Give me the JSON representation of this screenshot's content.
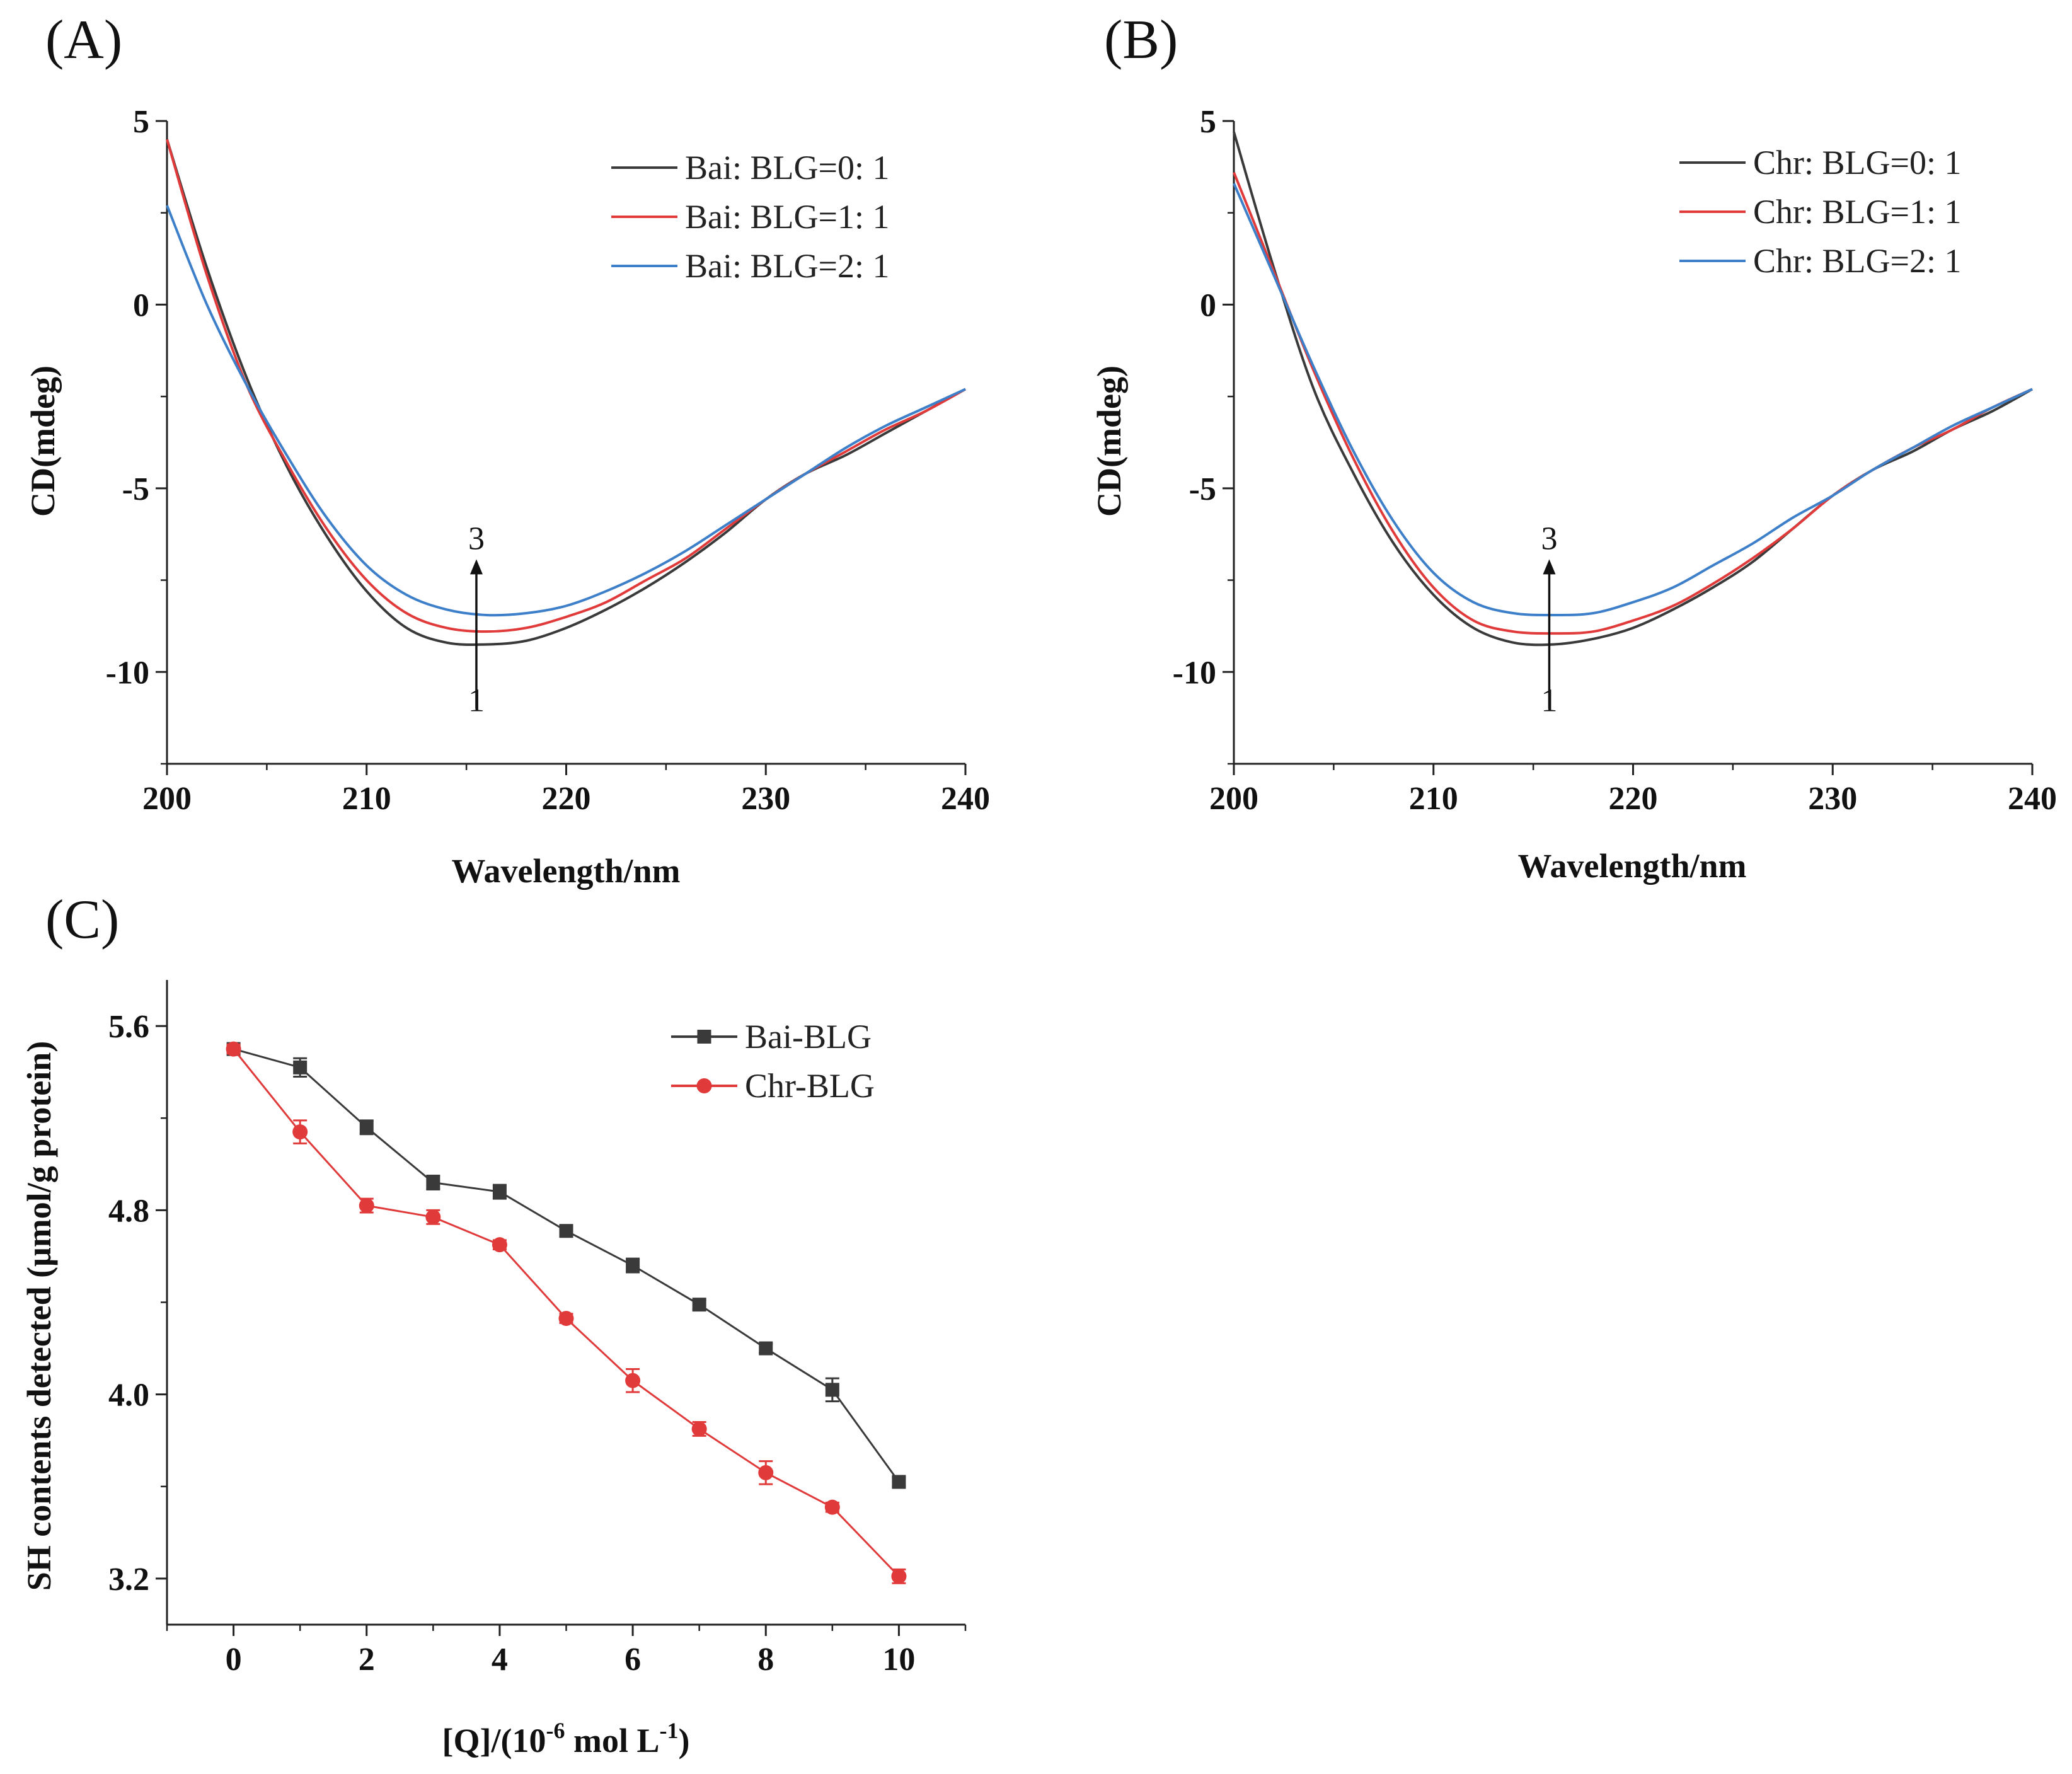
{
  "chart_data": [
    {
      "panel": "(A)",
      "type": "line",
      "xlabel": "Wavelength/nm",
      "ylabel": "CD(mdeg)",
      "xlim": [
        200,
        240
      ],
      "ylim": [
        -12.5,
        5
      ],
      "xticks": [
        200,
        210,
        220,
        230,
        240
      ],
      "yticks": [
        5,
        0,
        -5,
        -10
      ],
      "annotation": {
        "x": 215.5,
        "from_label": "1",
        "to_label": "3",
        "y_from": -11,
        "y_to": -7
      },
      "legend_position": "top-right",
      "series": [
        {
          "name": "Bai: BLG=0: 1",
          "color": "#3a3a3a",
          "x": [
            200,
            202,
            204,
            206,
            208,
            210,
            212,
            214,
            216,
            218,
            220,
            222,
            224,
            226,
            228,
            230,
            232,
            234,
            236,
            238,
            240
          ],
          "y": [
            4.5,
            1.0,
            -2.0,
            -4.4,
            -6.3,
            -7.8,
            -8.8,
            -9.2,
            -9.25,
            -9.15,
            -8.8,
            -8.3,
            -7.7,
            -7.0,
            -6.2,
            -5.3,
            -4.6,
            -4.1,
            -3.5,
            -2.9,
            -2.3
          ]
        },
        {
          "name": "Bai: BLG=1: 1",
          "color": "#e03a3a",
          "x": [
            200,
            202,
            204,
            206,
            208,
            210,
            212,
            214,
            216,
            218,
            220,
            222,
            224,
            226,
            228,
            230,
            232,
            234,
            236,
            238,
            240
          ],
          "y": [
            4.5,
            0.8,
            -2.2,
            -4.3,
            -6.1,
            -7.5,
            -8.4,
            -8.8,
            -8.9,
            -8.8,
            -8.5,
            -8.1,
            -7.5,
            -6.9,
            -6.1,
            -5.3,
            -4.6,
            -4.0,
            -3.4,
            -2.9,
            -2.3
          ]
        },
        {
          "name": "Bai: BLG=2: 1",
          "color": "#3d7fc9",
          "x": [
            200,
            202,
            204,
            206,
            208,
            210,
            212,
            214,
            216,
            218,
            220,
            222,
            224,
            226,
            228,
            230,
            232,
            234,
            236,
            238,
            240
          ],
          "y": [
            2.7,
            0.0,
            -2.2,
            -4.1,
            -5.8,
            -7.1,
            -7.9,
            -8.3,
            -8.45,
            -8.4,
            -8.2,
            -7.8,
            -7.3,
            -6.7,
            -6.0,
            -5.3,
            -4.6,
            -3.9,
            -3.3,
            -2.8,
            -2.3
          ]
        }
      ]
    },
    {
      "panel": "(B)",
      "type": "line",
      "xlabel": "Wavelength/nm",
      "ylabel": "CD(mdeg)",
      "xlim": [
        200,
        240
      ],
      "ylim": [
        -12.5,
        5
      ],
      "xticks": [
        200,
        210,
        220,
        230,
        240
      ],
      "yticks": [
        5,
        0,
        -5,
        -10
      ],
      "annotation": {
        "x": 215.8,
        "from_label": "1",
        "to_label": "3",
        "y_from": -11,
        "y_to": -7
      },
      "legend_position": "top-right",
      "series": [
        {
          "name": "Chr: BLG=0: 1",
          "color": "#3a3a3a",
          "x": [
            200,
            202,
            204,
            206,
            208,
            210,
            212,
            214,
            216,
            218,
            220,
            222,
            224,
            226,
            228,
            230,
            232,
            234,
            236,
            238,
            240
          ],
          "y": [
            4.7,
            1.0,
            -2.3,
            -4.6,
            -6.5,
            -7.9,
            -8.8,
            -9.2,
            -9.25,
            -9.1,
            -8.8,
            -8.3,
            -7.7,
            -7.0,
            -6.1,
            -5.2,
            -4.5,
            -4.0,
            -3.4,
            -2.9,
            -2.3
          ]
        },
        {
          "name": "Chr: BLG=1: 1",
          "color": "#e03a3a",
          "x": [
            200,
            202,
            204,
            206,
            208,
            210,
            212,
            214,
            216,
            218,
            220,
            222,
            224,
            226,
            228,
            230,
            232,
            234,
            236,
            238,
            240
          ],
          "y": [
            3.6,
            0.9,
            -1.8,
            -4.2,
            -6.2,
            -7.7,
            -8.6,
            -8.9,
            -8.95,
            -8.9,
            -8.6,
            -8.2,
            -7.6,
            -6.9,
            -6.1,
            -5.2,
            -4.5,
            -3.9,
            -3.4,
            -2.8,
            -2.3
          ]
        },
        {
          "name": "Chr: BLG=2: 1",
          "color": "#3d7fc9",
          "x": [
            200,
            202,
            204,
            206,
            208,
            210,
            212,
            214,
            216,
            218,
            220,
            222,
            224,
            226,
            228,
            230,
            232,
            234,
            236,
            238,
            240
          ],
          "y": [
            3.3,
            0.8,
            -1.7,
            -4.0,
            -5.9,
            -7.3,
            -8.1,
            -8.4,
            -8.45,
            -8.4,
            -8.1,
            -7.7,
            -7.1,
            -6.5,
            -5.8,
            -5.2,
            -4.5,
            -3.9,
            -3.3,
            -2.8,
            -2.3
          ]
        }
      ]
    },
    {
      "panel": "(C)",
      "type": "line",
      "xlabel": "[Q]/(10",
      "xlabel_exp1": "-6",
      "xlabel_mid": " mol L",
      "xlabel_exp2": "-1",
      "xlabel_end": ")",
      "ylabel": "SH contents detected (μmol/g protein)",
      "xlim": [
        -1,
        11
      ],
      "ylim": [
        3.0,
        5.8
      ],
      "xticks": [
        0,
        2,
        4,
        6,
        8,
        10
      ],
      "yticks": [
        5.6,
        4.8,
        4.0,
        3.2
      ],
      "legend_position": "top-right",
      "series": [
        {
          "name": "Bai-BLG",
          "color": "#3a3a3a",
          "marker": "square",
          "x": [
            0,
            1,
            2,
            3,
            4,
            5,
            6,
            7,
            8,
            9,
            10
          ],
          "y": [
            5.5,
            5.42,
            5.16,
            4.92,
            4.88,
            4.71,
            4.56,
            4.39,
            4.2,
            4.02,
            3.62
          ],
          "err": [
            0.02,
            0.04,
            0.03,
            0.03,
            0.03,
            0.02,
            0.03,
            0.02,
            0.02,
            0.05,
            0.02
          ]
        },
        {
          "name": "Chr-BLG",
          "color": "#e03a3a",
          "marker": "circle",
          "x": [
            0,
            1,
            2,
            3,
            4,
            5,
            6,
            7,
            8,
            9,
            10
          ],
          "y": [
            5.5,
            5.14,
            4.82,
            4.77,
            4.65,
            4.33,
            4.06,
            3.85,
            3.66,
            3.51,
            3.21
          ],
          "err": [
            0.02,
            0.05,
            0.03,
            0.03,
            0.02,
            0.02,
            0.05,
            0.03,
            0.05,
            0.02,
            0.03
          ]
        }
      ]
    }
  ]
}
